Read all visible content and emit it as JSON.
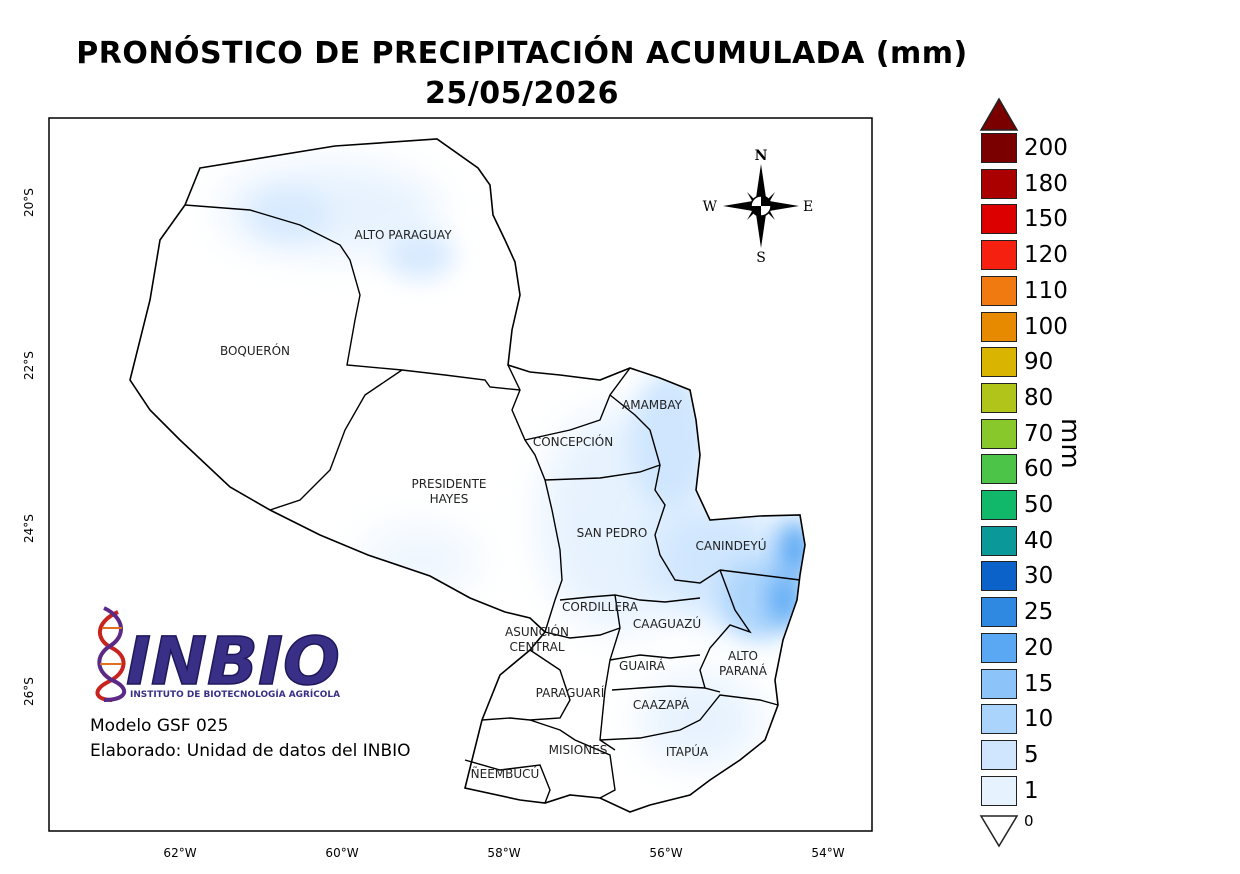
{
  "title": "PRONÓSTICO DE PRECIPITACIÓN ACUMULADA (mm)",
  "date": "25/05/2026",
  "latitude_labels": [
    "20°S",
    "22°S",
    "24°S",
    "26°S"
  ],
  "longitude_labels": [
    "62°W",
    "60°W",
    "58°W",
    "56°W",
    "54°W"
  ],
  "compass": {
    "n": "N",
    "s": "S",
    "e": "E",
    "w": "W"
  },
  "regions": [
    {
      "id": "alto-paraguay",
      "lines": [
        "ALTO PARAGUAY"
      ]
    },
    {
      "id": "boqueron",
      "lines": [
        "BOQUERÓN"
      ]
    },
    {
      "id": "presidente-hayes",
      "lines": [
        "PRESIDENTE",
        "HAYES"
      ]
    },
    {
      "id": "concepcion",
      "lines": [
        "CONCEPCIÓN"
      ]
    },
    {
      "id": "amambay",
      "lines": [
        "AMAMBAY"
      ]
    },
    {
      "id": "san-pedro",
      "lines": [
        "SAN PEDRO"
      ]
    },
    {
      "id": "canindeyu",
      "lines": [
        "CANINDEYÚ"
      ]
    },
    {
      "id": "cordillera",
      "lines": [
        "CORDILLERA"
      ]
    },
    {
      "id": "caaguazu",
      "lines": [
        "CAAGUAZÚ"
      ]
    },
    {
      "id": "asuncion-central",
      "lines": [
        "ASUNCIÓN",
        "CENTRAL"
      ]
    },
    {
      "id": "alto-parana",
      "lines": [
        "ALTO",
        "PARANÁ"
      ]
    },
    {
      "id": "guaira",
      "lines": [
        "GUAIRÁ"
      ]
    },
    {
      "id": "paraguari",
      "lines": [
        "PARAGUARÍ"
      ]
    },
    {
      "id": "caazapa",
      "lines": [
        "CAAZAPÁ"
      ]
    },
    {
      "id": "misiones",
      "lines": [
        "MISIONES"
      ]
    },
    {
      "id": "itapua",
      "lines": [
        "ITAPÚA"
      ]
    },
    {
      "id": "neembucu",
      "lines": [
        "ÑEEMBUCÚ"
      ]
    }
  ],
  "legend": {
    "unit": "mm",
    "bins": [
      {
        "label": "200",
        "color": "#7a0000"
      },
      {
        "label": "180",
        "color": "#aa0000"
      },
      {
        "label": "150",
        "color": "#dd0000"
      },
      {
        "label": "120",
        "color": "#f52010"
      },
      {
        "label": "110",
        "color": "#f07a10"
      },
      {
        "label": "100",
        "color": "#e88a00"
      },
      {
        "label": "90",
        "color": "#d9b400"
      },
      {
        "label": "80",
        "color": "#b0c41a"
      },
      {
        "label": "70",
        "color": "#88c82a"
      },
      {
        "label": "60",
        "color": "#4cc448"
      },
      {
        "label": "50",
        "color": "#12b86a"
      },
      {
        "label": "40",
        "color": "#0a9898"
      },
      {
        "label": "30",
        "color": "#0b62c8"
      },
      {
        "label": "25",
        "color": "#3089e0"
      },
      {
        "label": "20",
        "color": "#5aa8f4"
      },
      {
        "label": "15",
        "color": "#8cc4fa"
      },
      {
        "label": "10",
        "color": "#abd4fc"
      },
      {
        "label": "5",
        "color": "#cfe6fe"
      },
      {
        "label": "1",
        "color": "#e6f2fe"
      }
    ],
    "zero_label": "0",
    "over_color": "#7a0000"
  },
  "logo": {
    "name": "INBIO",
    "subtitle": "INSTITUTO DE BIOTECNOLOGÍA AGRÍCOLA"
  },
  "credits": {
    "model": "Modelo GSF 025",
    "made_by": "Elaborado: Unidad de datos del INBIO"
  }
}
